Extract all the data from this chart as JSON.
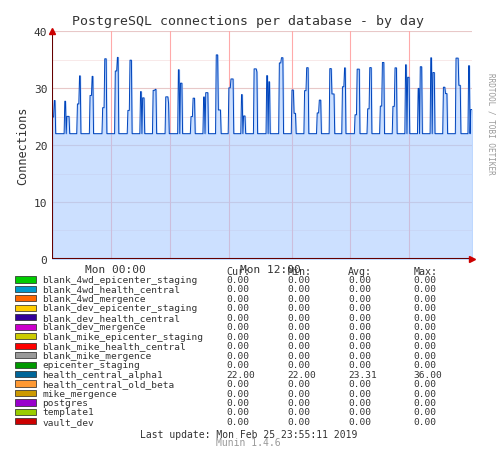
{
  "title": "PostgreSQL connections per database - by day",
  "ylabel": "Connections",
  "bg_color": "#ffffff",
  "plot_bg_color": "#ffffff",
  "grid_color": "#e8c8c8",
  "axis_line_color": "#660000",
  "ylim": [
    0,
    40
  ],
  "yticks": [
    0,
    10,
    20,
    30,
    40
  ],
  "xtick_labels": [
    "Mon 00:00",
    "Mon 12:00"
  ],
  "xtick_pos": [
    0.15,
    0.52
  ],
  "series_color": "#0044bb",
  "fill_color": "#aaccff",
  "vline_color": "#ffaaaa",
  "num_vlines": 6,
  "vline_positions": [
    0.14,
    0.28,
    0.42,
    0.57,
    0.71,
    0.85
  ],
  "legend_entries": [
    {
      "label": "blank_4wd_epicenter_staging",
      "color": "#00cc00"
    },
    {
      "label": "blank_4wd_health_central",
      "color": "#0099cc"
    },
    {
      "label": "blank_4wd_mergence",
      "color": "#ff6600"
    },
    {
      "label": "blank_dev_epicenter_staging",
      "color": "#ffcc00"
    },
    {
      "label": "blank_dev_health_central",
      "color": "#330099"
    },
    {
      "label": "blank_dev_mergence",
      "color": "#cc00cc"
    },
    {
      "label": "blank_mike_epicenter_staging",
      "color": "#cccc00"
    },
    {
      "label": "blank_mike_health_central",
      "color": "#ff0000"
    },
    {
      "label": "blank_mike_mergence",
      "color": "#999999"
    },
    {
      "label": "epicenter_staging",
      "color": "#009900"
    },
    {
      "label": "health_central_alpha1",
      "color": "#006699"
    },
    {
      "label": "health_central_old_beta",
      "color": "#ff9933"
    },
    {
      "label": "mike_mergence",
      "color": "#cc9900"
    },
    {
      "label": "postgres",
      "color": "#9900cc"
    },
    {
      "label": "template1",
      "color": "#99cc00"
    },
    {
      "label": "vault_dev",
      "color": "#cc0000"
    }
  ],
  "col_headers": [
    "Cur:",
    "Min:",
    "Avg:",
    "Max:"
  ],
  "col_values": [
    [
      "0.00",
      "0.00",
      "0.00",
      "0.00",
      "0.00",
      "0.00",
      "0.00",
      "0.00",
      "0.00",
      "0.00",
      "22.00",
      "0.00",
      "0.00",
      "0.00",
      "0.00",
      "0.00"
    ],
    [
      "0.00",
      "0.00",
      "0.00",
      "0.00",
      "0.00",
      "0.00",
      "0.00",
      "0.00",
      "0.00",
      "0.00",
      "22.00",
      "0.00",
      "0.00",
      "0.00",
      "0.00",
      "0.00"
    ],
    [
      "0.00",
      "0.00",
      "0.00",
      "0.00",
      "0.00",
      "0.00",
      "0.00",
      "0.00",
      "0.00",
      "0.00",
      "23.31",
      "0.00",
      "0.00",
      "0.00",
      "0.00",
      "0.00"
    ],
    [
      "0.00",
      "0.00",
      "0.00",
      "0.00",
      "0.00",
      "0.00",
      "0.00",
      "0.00",
      "0.00",
      "0.00",
      "36.00",
      "0.00",
      "0.00",
      "0.00",
      "0.00",
      "0.00"
    ]
  ],
  "last_update": "Last update: Mon Feb 25 23:55:11 2019",
  "munin_version": "Munin 1.4.6",
  "rrdtool_label": "RRDTOOL / TOBI OETIKER",
  "arrow_color": "#cc0000",
  "text_color": "#333333",
  "munin_color": "#999999"
}
